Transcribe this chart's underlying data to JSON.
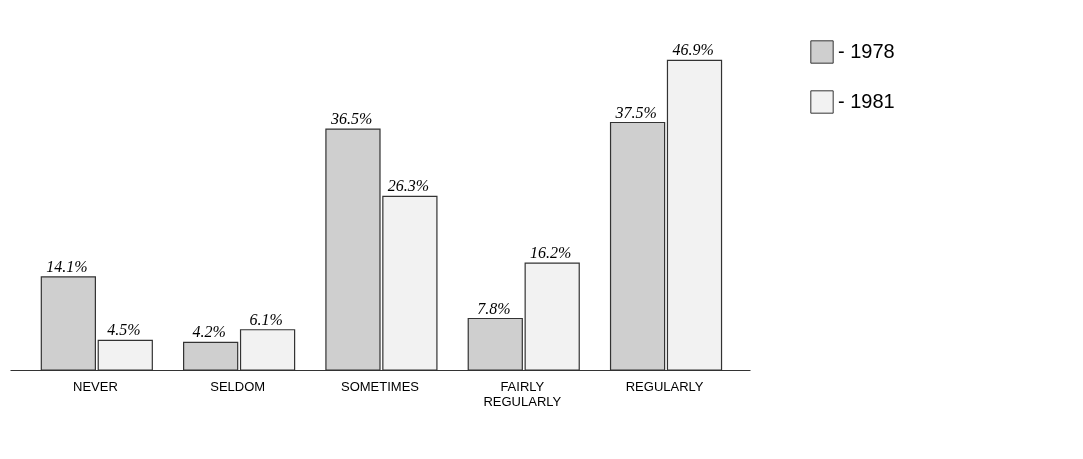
{
  "chart_data": {
    "type": "bar",
    "categories": [
      "NEVER",
      "SELDOM",
      "SOMETIMES",
      "FAIRLY REGULARLY",
      "REGULARLY"
    ],
    "series": [
      {
        "name": "- 1978",
        "color": "#cfcfcf",
        "values": [
          14.1,
          4.2,
          36.5,
          7.8,
          37.5
        ],
        "value_labels": [
          "14.1%",
          "4.2%",
          "36.5%",
          "7.8%",
          "37.5%"
        ]
      },
      {
        "name": "- 1981",
        "color": "#f2f2f2",
        "values": [
          4.5,
          6.1,
          26.3,
          16.2,
          46.9
        ],
        "value_labels": [
          "4.5%",
          "6.1%",
          "26.3%",
          "16.2%",
          "46.9%"
        ]
      }
    ],
    "legend": "right",
    "grid": false
  }
}
